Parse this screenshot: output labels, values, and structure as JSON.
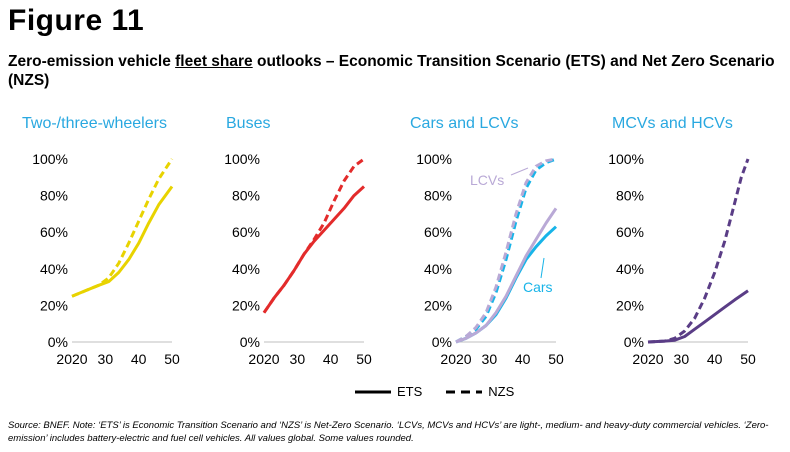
{
  "figure_label": "Figure 11",
  "title": {
    "prefix": "Zero-emission vehicle ",
    "underlined": "fleet share",
    "suffix": " outlooks – Economic Transition Scenario (ETS) and Net Zero Scenario (NZS)"
  },
  "legend": {
    "ets_label": "ETS",
    "nzs_label": "NZS"
  },
  "source_note": "Source: BNEF. Note: ‘ETS’ is Economic Transition Scenario and ‘NZS’ is Net-Zero Scenario. ‘LCVs, MCVs and HCVs’ are light-, medium- and heavy-duty commercial vehicles. ‘Zero-emission’ includes battery-electric and fuel cell vehicles. All values global. Some values rounded.",
  "colors": {
    "title_cyan": "#29a8e0",
    "two_three_wheelers": "#e8d300",
    "buses": "#e32b2b",
    "cars": "#18b4e8",
    "lcvs": "#b9a9d6",
    "mcv_hcv": "#5a3d86",
    "axis": "#bfbfbf"
  },
  "chart_data": [
    {
      "type": "line",
      "title": "Two-/three-wheelers",
      "ylim": [
        0,
        100
      ],
      "xlim": [
        2020,
        2050
      ],
      "xticks": [
        "2020",
        "30",
        "40",
        "50"
      ],
      "yticks": [
        "0%",
        "20%",
        "40%",
        "60%",
        "80%",
        "100%"
      ],
      "series": [
        {
          "scenario": "ETS",
          "color_key": "two_three_wheelers",
          "x": [
            2020,
            2024,
            2028,
            2031,
            2034,
            2037,
            2040,
            2043,
            2046,
            2050
          ],
          "y": [
            25,
            28,
            31,
            33,
            38,
            45,
            54,
            65,
            75,
            85
          ]
        },
        {
          "scenario": "NZS",
          "color_key": "two_three_wheelers",
          "x": [
            2020,
            2024,
            2028,
            2031,
            2034,
            2037,
            2040,
            2043,
            2046,
            2050
          ],
          "y": [
            25,
            28,
            31,
            35,
            43,
            54,
            66,
            78,
            89,
            100
          ]
        }
      ]
    },
    {
      "type": "line",
      "title": "Buses",
      "ylim": [
        0,
        100
      ],
      "xlim": [
        2020,
        2050
      ],
      "xticks": [
        "2020",
        "30",
        "40",
        "50"
      ],
      "yticks": [
        "0%",
        "20%",
        "40%",
        "60%",
        "80%",
        "100%"
      ],
      "series": [
        {
          "scenario": "ETS",
          "color_key": "buses",
          "x": [
            2020,
            2023,
            2026,
            2029,
            2032,
            2035,
            2038,
            2041,
            2044,
            2047,
            2050
          ],
          "y": [
            16,
            24,
            31,
            39,
            48,
            55,
            61,
            67,
            73,
            80,
            85
          ]
        },
        {
          "scenario": "NZS",
          "color_key": "buses",
          "x": [
            2020,
            2023,
            2026,
            2029,
            2032,
            2035,
            2038,
            2041,
            2044,
            2047,
            2050
          ],
          "y": [
            16,
            24,
            31,
            39,
            48,
            56,
            65,
            77,
            88,
            96,
            100
          ]
        }
      ]
    },
    {
      "type": "line",
      "title": "Cars and LCVs",
      "ylim": [
        0,
        100
      ],
      "xlim": [
        2020,
        2050
      ],
      "xticks": [
        "2020",
        "30",
        "40",
        "50"
      ],
      "yticks": [
        "0%",
        "20%",
        "40%",
        "60%",
        "80%",
        "100%"
      ],
      "annotations": [
        "LCVs",
        "Cars"
      ],
      "series": [
        {
          "scenario": "ETS",
          "vehicle": "Cars",
          "color_key": "cars",
          "x": [
            2020,
            2023,
            2026,
            2029,
            2032,
            2035,
            2038,
            2041,
            2044,
            2047,
            2050
          ],
          "y": [
            0,
            2,
            5,
            9,
            15,
            24,
            35,
            45,
            52,
            58,
            63
          ]
        },
        {
          "scenario": "NZS",
          "vehicle": "Cars",
          "color_key": "cars",
          "x": [
            2020,
            2023,
            2026,
            2029,
            2032,
            2035,
            2038,
            2041,
            2044,
            2047,
            2050
          ],
          "y": [
            0,
            3,
            7,
            14,
            27,
            45,
            66,
            84,
            94,
            98,
            100
          ]
        },
        {
          "scenario": "ETS",
          "vehicle": "LCVs",
          "color_key": "lcvs",
          "x": [
            2020,
            2023,
            2026,
            2029,
            2032,
            2035,
            2038,
            2041,
            2044,
            2047,
            2050
          ],
          "y": [
            0,
            2,
            5,
            9,
            16,
            25,
            36,
            47,
            56,
            65,
            73
          ]
        },
        {
          "scenario": "NZS",
          "vehicle": "LCVs",
          "color_key": "lcvs",
          "x": [
            2020,
            2023,
            2026,
            2029,
            2032,
            2035,
            2038,
            2041,
            2044,
            2047,
            2050
          ],
          "y": [
            0,
            3,
            8,
            16,
            30,
            49,
            70,
            87,
            96,
            99,
            100
          ]
        }
      ]
    },
    {
      "type": "line",
      "title": "MCVs and HCVs",
      "ylim": [
        0,
        100
      ],
      "xlim": [
        2020,
        2050
      ],
      "xticks": [
        "2020",
        "30",
        "40",
        "50"
      ],
      "yticks": [
        "0%",
        "20%",
        "40%",
        "60%",
        "80%",
        "100%"
      ],
      "series": [
        {
          "scenario": "ETS",
          "color_key": "mcv_hcv",
          "x": [
            2020,
            2025,
            2028,
            2031,
            2034,
            2037,
            2040,
            2043,
            2046,
            2050
          ],
          "y": [
            0,
            0.5,
            1,
            3,
            7,
            11,
            15,
            19,
            23,
            28
          ]
        },
        {
          "scenario": "NZS",
          "color_key": "mcv_hcv",
          "x": [
            2020,
            2025,
            2028,
            2031,
            2034,
            2037,
            2040,
            2043,
            2046,
            2048,
            2050
          ],
          "y": [
            0,
            0.5,
            2,
            6,
            13,
            24,
            38,
            55,
            76,
            90,
            100
          ]
        }
      ]
    }
  ]
}
